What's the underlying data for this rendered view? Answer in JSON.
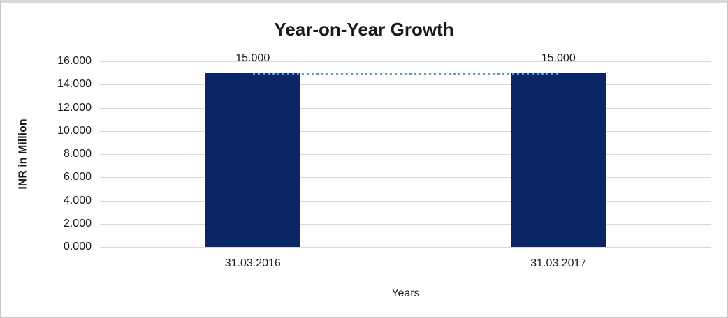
{
  "chart": {
    "frame_border_color": "#c9c9c9",
    "frame_top_band_color": "#d9d9d9",
    "background_color": "#ffffff"
  },
  "chart_data": {
    "type": "bar",
    "title": "Year-on-Year Growth",
    "xlabel": "Years",
    "ylabel": "INR in Million",
    "categories": [
      "31.03.2016",
      "31.03.2017"
    ],
    "values": [
      15.0,
      15.0
    ],
    "value_labels": [
      "15.000",
      "15.000"
    ],
    "ylim": [
      0,
      16
    ],
    "y_tick_step": 2,
    "y_tick_labels_top_to_bottom": [
      "16.000",
      "14.000",
      "12.000",
      "10.000",
      "8.000",
      "6.000",
      "4.000",
      "2.000",
      "0.000"
    ],
    "grid": true,
    "gridline_color": "#d9d9d9",
    "legend_position": "none",
    "bar_color": "#0a2666",
    "trendline": {
      "type": "linear",
      "style": "dotted",
      "color": "#5b9bd5",
      "start_value": 15.0,
      "end_value": 15.0
    }
  }
}
